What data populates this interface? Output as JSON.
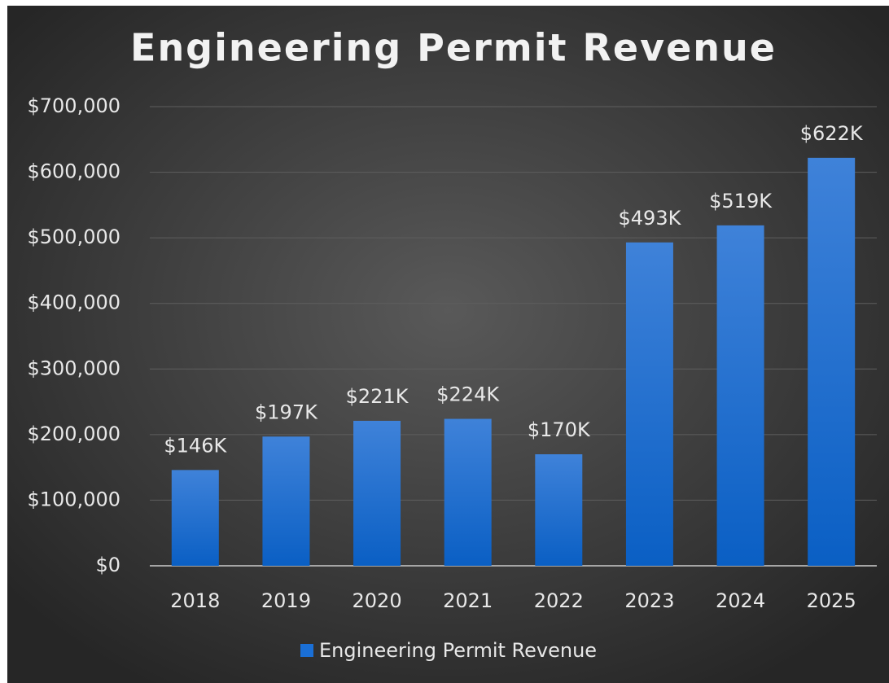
{
  "chart_data": {
    "type": "bar",
    "title": "Engineering Permit Revenue",
    "categories": [
      "2018",
      "2019",
      "2020",
      "2021",
      "2022",
      "2023",
      "2024",
      "2025"
    ],
    "series": [
      {
        "name": "Engineering Permit Revenue",
        "color": "#1a6fd6",
        "values": [
          146000,
          197000,
          221000,
          224000,
          170000,
          493000,
          519000,
          622000
        ],
        "value_labels": [
          "$146K",
          "$197K",
          "$221K",
          "$224K",
          "$170K",
          "$493K",
          "$519K",
          "$622K"
        ]
      }
    ],
    "ylim": [
      0,
      700000
    ],
    "yticks": [
      {
        "value": 0,
        "label": "$0"
      },
      {
        "value": 100000,
        "label": "$100,000"
      },
      {
        "value": 200000,
        "label": "$200,000"
      },
      {
        "value": 300000,
        "label": "$300,000"
      },
      {
        "value": 400000,
        "label": "$400,000"
      },
      {
        "value": 500000,
        "label": "$500,000"
      },
      {
        "value": 600000,
        "label": "$600,000"
      },
      {
        "value": 700000,
        "label": "$700,000"
      }
    ],
    "grid": true,
    "legend": "bottom"
  }
}
